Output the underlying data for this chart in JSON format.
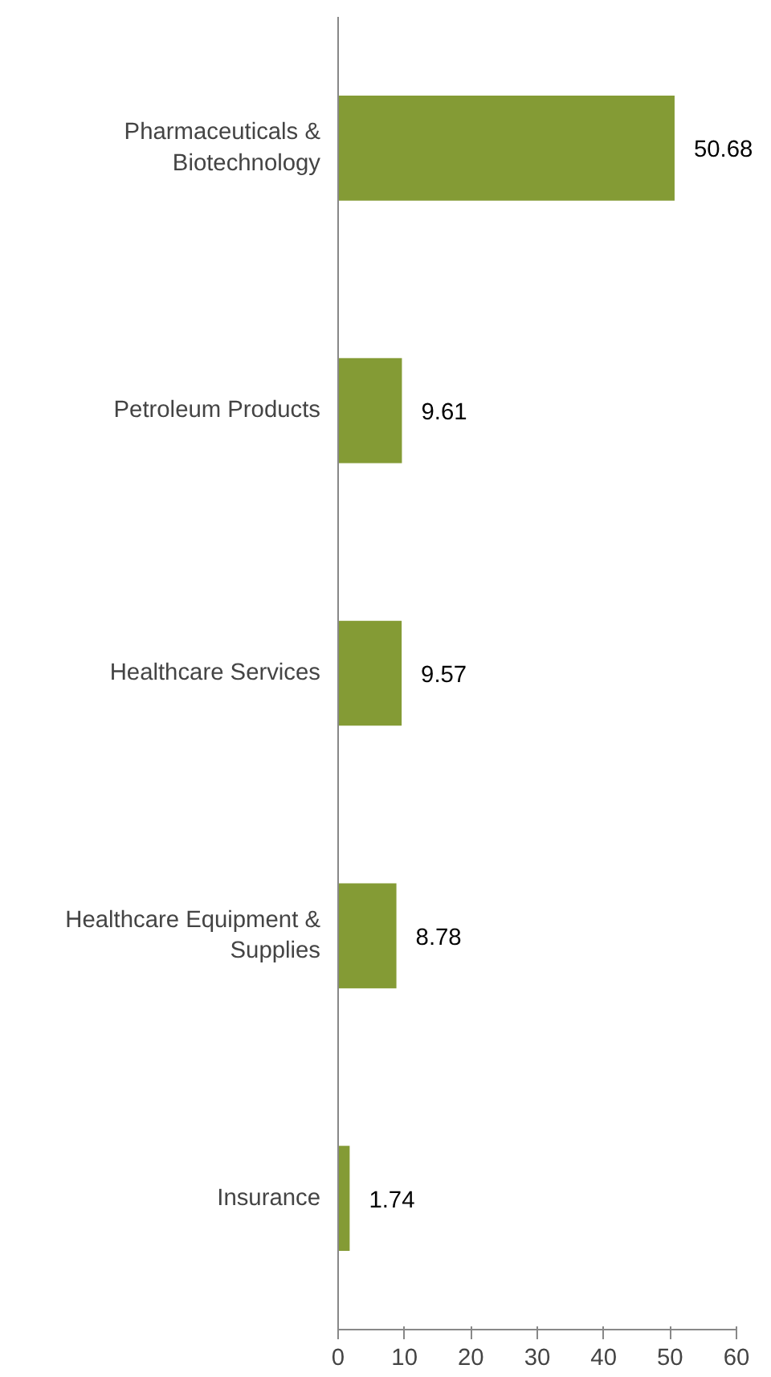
{
  "chart_data": {
    "type": "bar",
    "orientation": "horizontal",
    "categories": [
      "Pharmaceuticals & Biotechnology",
      "Petroleum Products",
      "Healthcare Services",
      "Healthcare Equipment & Supplies",
      "Insurance"
    ],
    "values": [
      50.68,
      9.61,
      9.57,
      8.78,
      1.74
    ],
    "color": "#849b35",
    "xlim": [
      0,
      60
    ],
    "xticks": [
      0,
      10,
      20,
      30,
      40,
      50,
      60
    ],
    "grid": false,
    "data_labels": true
  }
}
